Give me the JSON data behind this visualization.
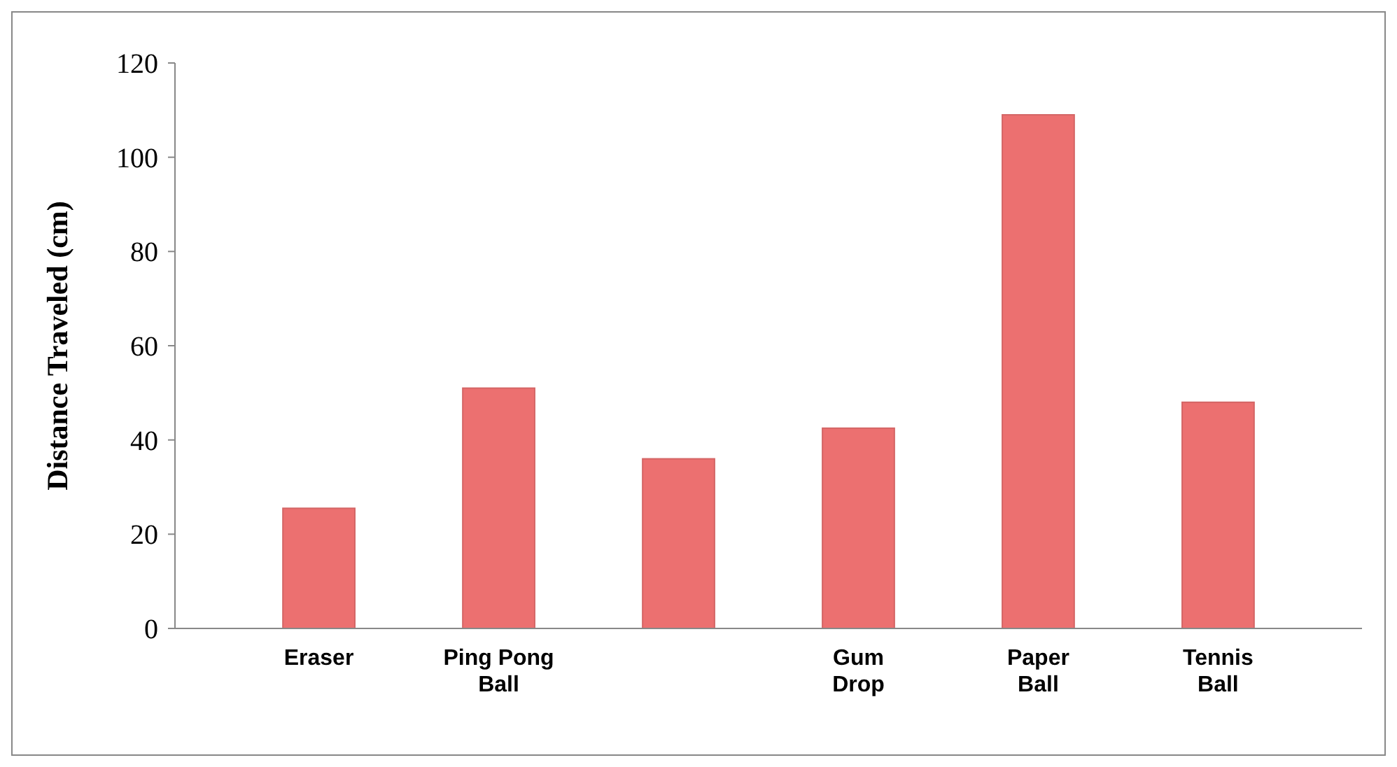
{
  "chart_data": {
    "type": "bar",
    "ylabel": "Distance Traveled (cm)",
    "categories": [
      "Eraser",
      "Ping Pong Ball",
      null,
      "Gum Drop",
      "Paper Ball",
      "Tennis Ball"
    ],
    "values": [
      25.5,
      51,
      36,
      42.5,
      109,
      48
    ],
    "color": "#ec7070",
    "ylim": [
      0,
      120
    ],
    "yticks": [
      0,
      20,
      40,
      60,
      80,
      100,
      120
    ],
    "grid": false
  }
}
